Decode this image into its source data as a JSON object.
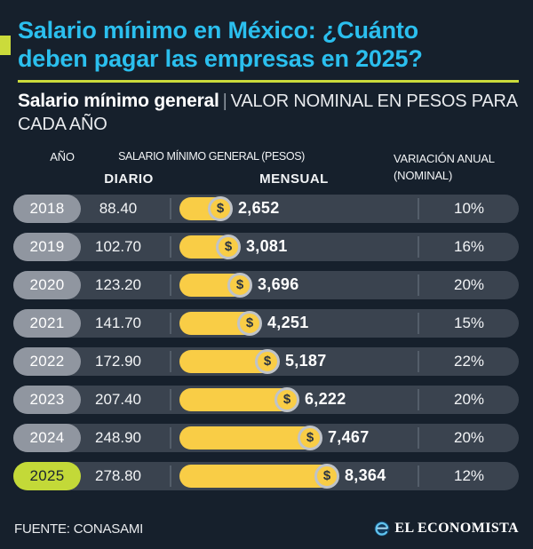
{
  "header": {
    "title_line1": "Salario mínimo en México: ¿Cuánto",
    "title_line2": "deben pagar las empresas en 2025?",
    "subtitle_bold": "Salario mínimo general",
    "subtitle_sep": "|",
    "subtitle_rest": "VALOR NOMINAL EN PESOS PARA CADA AÑO"
  },
  "table": {
    "col_year": "AÑO",
    "col_group": "SALARIO MÍNIMO GENERAL (PESOS)",
    "col_daily": "DIARIO",
    "col_monthly": "MENSUAL",
    "col_variation_line1": "VARIACIÓN ANUAL",
    "col_variation_line2": "(NOMINAL)",
    "coin_symbol": "$",
    "max_monthly": 8364,
    "rows": [
      {
        "year": "2018",
        "daily": "88.40",
        "monthly": "2,652",
        "monthly_value": 2652,
        "variation": "10%",
        "highlight": false
      },
      {
        "year": "2019",
        "daily": "102.70",
        "monthly": "3,081",
        "monthly_value": 3081,
        "variation": "16%",
        "highlight": false
      },
      {
        "year": "2020",
        "daily": "123.20",
        "monthly": "3,696",
        "monthly_value": 3696,
        "variation": "20%",
        "highlight": false
      },
      {
        "year": "2021",
        "daily": "141.70",
        "monthly": "4,251",
        "monthly_value": 4251,
        "variation": "15%",
        "highlight": false
      },
      {
        "year": "2022",
        "daily": "172.90",
        "monthly": "5,187",
        "monthly_value": 5187,
        "variation": "22%",
        "highlight": false
      },
      {
        "year": "2023",
        "daily": "207.40",
        "monthly": "6,222",
        "monthly_value": 6222,
        "variation": "20%",
        "highlight": false
      },
      {
        "year": "2024",
        "daily": "248.90",
        "monthly": "7,467",
        "monthly_value": 7467,
        "variation": "20%",
        "highlight": false
      },
      {
        "year": "2025",
        "daily": "278.80",
        "monthly": "8,364",
        "monthly_value": 8364,
        "variation": "12%",
        "highlight": true
      }
    ]
  },
  "footer": {
    "source": "FUENTE: CONASAMI",
    "brand": "EL ECONOMISTA"
  },
  "colors": {
    "background": "#16202c",
    "title_cyan": "#2bbfee",
    "accent_lime": "#cbdb3b",
    "highlight_pill": "#c3d938",
    "row_slate": "#3a434f",
    "year_pill_gray": "#9096a0",
    "bar_yellow": "#f9cd46",
    "coin_ring_gray": "#bfc3c9"
  },
  "chart_data": {
    "type": "bar",
    "title": "Salario mínimo en México: ¿Cuánto deben pagar las empresas en 2025?",
    "subtitle": "Salario mínimo general | Valor nominal en pesos para cada año",
    "categories": [
      "2018",
      "2019",
      "2020",
      "2021",
      "2022",
      "2023",
      "2024",
      "2025"
    ],
    "series": [
      {
        "name": "Salario mínimo diario (pesos)",
        "values": [
          88.4,
          102.7,
          123.2,
          141.7,
          172.9,
          207.4,
          248.9,
          278.8
        ]
      },
      {
        "name": "Salario mínimo mensual (pesos)",
        "values": [
          2652,
          3081,
          3696,
          4251,
          5187,
          6222,
          7467,
          8364
        ]
      },
      {
        "name": "Variación anual nominal (%)",
        "values": [
          10,
          16,
          20,
          15,
          22,
          20,
          20,
          12
        ]
      }
    ],
    "orientation": "horizontal",
    "bar_series": "Salario mínimo mensual (pesos)",
    "xlim": [
      0,
      8364
    ],
    "grid": false,
    "legend_position": "none",
    "source": "CONASAMI"
  }
}
